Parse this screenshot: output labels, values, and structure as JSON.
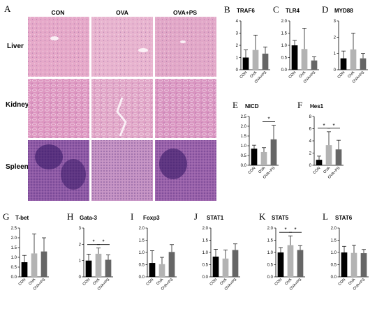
{
  "histology": {
    "panel_letter": "A",
    "columns": [
      "CON",
      "OVA",
      "OVA+PS"
    ],
    "rows": [
      "Liver",
      "Kidney",
      "Spleen"
    ],
    "tile_colors": {
      "Liver": [
        "#e6a9c9",
        "#e8b4cf",
        "#e2a8c8"
      ],
      "Kidney": [
        "#dd96c0",
        "#e0a4c6",
        "#d994c0"
      ],
      "Spleen": [
        "#8f5aa6",
        "#c593c4",
        "#9a62ab"
      ]
    }
  },
  "bar_colors": [
    "#000000",
    "#b3b3b3",
    "#666666"
  ],
  "chart_data": [
    {
      "id": "traf6",
      "type": "bar",
      "panel_letter": "B",
      "title": "TRAF6",
      "categories": [
        "CON",
        "OVA",
        "OVA+PS"
      ],
      "values": [
        1.0,
        1.62,
        1.32
      ],
      "errors": [
        0.62,
        1.22,
        0.55
      ],
      "ylim": [
        0,
        4
      ],
      "yticks": [
        0,
        1,
        2,
        3,
        4
      ],
      "significance": []
    },
    {
      "id": "tlr4",
      "type": "bar",
      "panel_letter": "C",
      "title": "TLR4",
      "categories": [
        "CON",
        "OVA",
        "OVA+PS"
      ],
      "values": [
        1.0,
        0.85,
        0.38
      ],
      "errors": [
        0.2,
        0.85,
        0.15
      ],
      "ylim": [
        0,
        2.0
      ],
      "yticks": [
        0.0,
        0.5,
        1.0,
        1.5,
        2.0
      ],
      "significance": []
    },
    {
      "id": "myd88",
      "type": "bar",
      "panel_letter": "D",
      "title": "MYD88",
      "categories": [
        "CON",
        "OVA",
        "OVA+PS"
      ],
      "values": [
        0.7,
        1.25,
        0.7
      ],
      "errors": [
        0.45,
        1.0,
        0.3
      ],
      "ylim": [
        0,
        3
      ],
      "yticks": [
        0,
        1,
        2,
        3
      ],
      "significance": []
    },
    {
      "id": "nicd",
      "type": "bar",
      "panel_letter": "E",
      "title": "NICD",
      "categories": [
        "CON",
        "OVA",
        "OVA+PS"
      ],
      "values": [
        0.85,
        0.68,
        1.33
      ],
      "errors": [
        0.18,
        0.22,
        0.72
      ],
      "ylim": [
        0,
        2.5
      ],
      "yticks": [
        0.0,
        0.5,
        1.0,
        1.5,
        2.0,
        2.5
      ],
      "significance": [
        {
          "from": 1,
          "to": 2,
          "label": "*"
        }
      ]
    },
    {
      "id": "hes1",
      "type": "bar",
      "panel_letter": "F",
      "title": "Hes1",
      "categories": [
        "CON",
        "OVA",
        "OVA+PS"
      ],
      "values": [
        0.9,
        3.3,
        2.6
      ],
      "errors": [
        0.6,
        2.2,
        1.5
      ],
      "ylim": [
        0,
        8
      ],
      "yticks": [
        0,
        2,
        4,
        6,
        8
      ],
      "significance": [
        {
          "from": 0,
          "to": 1,
          "label": "*"
        },
        {
          "from": 1,
          "to": 2,
          "label": "*"
        }
      ]
    },
    {
      "id": "tbet",
      "type": "bar",
      "panel_letter": "G",
      "title": "T-bet",
      "categories": [
        "CON",
        "OVA",
        "OVA+PS"
      ],
      "values": [
        0.75,
        1.2,
        1.3
      ],
      "errors": [
        0.35,
        1.0,
        0.7
      ],
      "ylim": [
        0,
        2.5
      ],
      "yticks": [
        0.0,
        0.5,
        1.0,
        1.5,
        2.0,
        2.5
      ],
      "significance": []
    },
    {
      "id": "gata3",
      "type": "bar",
      "panel_letter": "H",
      "title": "Gata-3",
      "categories": [
        "CON",
        "OVA",
        "OVA+PS"
      ],
      "values": [
        1.0,
        1.42,
        1.05
      ],
      "errors": [
        0.4,
        0.35,
        0.3
      ],
      "ylim": [
        0,
        3
      ],
      "yticks": [
        0,
        1,
        2,
        3
      ],
      "significance": [
        {
          "from": 0,
          "to": 1,
          "label": "*"
        },
        {
          "from": 1,
          "to": 2,
          "label": "*"
        }
      ]
    },
    {
      "id": "foxp3",
      "type": "bar",
      "panel_letter": "I",
      "title": "Foxp3",
      "categories": [
        "CON",
        "OVA",
        "OVA+PS"
      ],
      "values": [
        0.57,
        0.52,
        1.02
      ],
      "errors": [
        0.5,
        0.28,
        0.3
      ],
      "ylim": [
        0,
        2.0
      ],
      "yticks": [
        0.0,
        0.5,
        1.0,
        1.5,
        2.0
      ],
      "significance": []
    },
    {
      "id": "stat1",
      "type": "bar",
      "panel_letter": "J",
      "title": "STAT1",
      "categories": [
        "CON",
        "OVA",
        "OVA+PS"
      ],
      "values": [
        0.83,
        0.75,
        1.1
      ],
      "errors": [
        0.3,
        0.35,
        0.25
      ],
      "ylim": [
        0,
        2.0
      ],
      "yticks": [
        0.0,
        0.5,
        1.0,
        1.5,
        2.0
      ],
      "significance": []
    },
    {
      "id": "stat5",
      "type": "bar",
      "panel_letter": "K",
      "title": "STAT5",
      "categories": [
        "CON",
        "OVA",
        "OVA+PS"
      ],
      "values": [
        1.0,
        1.3,
        1.1
      ],
      "errors": [
        0.2,
        0.38,
        0.18
      ],
      "ylim": [
        0,
        2.0
      ],
      "yticks": [
        0.0,
        0.5,
        1.0,
        1.5,
        2.0
      ],
      "significance": [
        {
          "from": 0,
          "to": 1,
          "label": "*"
        },
        {
          "from": 1,
          "to": 2,
          "label": "*"
        }
      ]
    },
    {
      "id": "stat6",
      "type": "bar",
      "panel_letter": "L",
      "title": "STAT6",
      "categories": [
        "CON",
        "OVA",
        "OVA+PS"
      ],
      "values": [
        1.0,
        0.98,
        0.97
      ],
      "errors": [
        0.25,
        0.32,
        0.15
      ],
      "ylim": [
        0,
        2.0
      ],
      "yticks": [
        0.0,
        0.5,
        1.0,
        1.5,
        2.0
      ],
      "significance": []
    }
  ]
}
